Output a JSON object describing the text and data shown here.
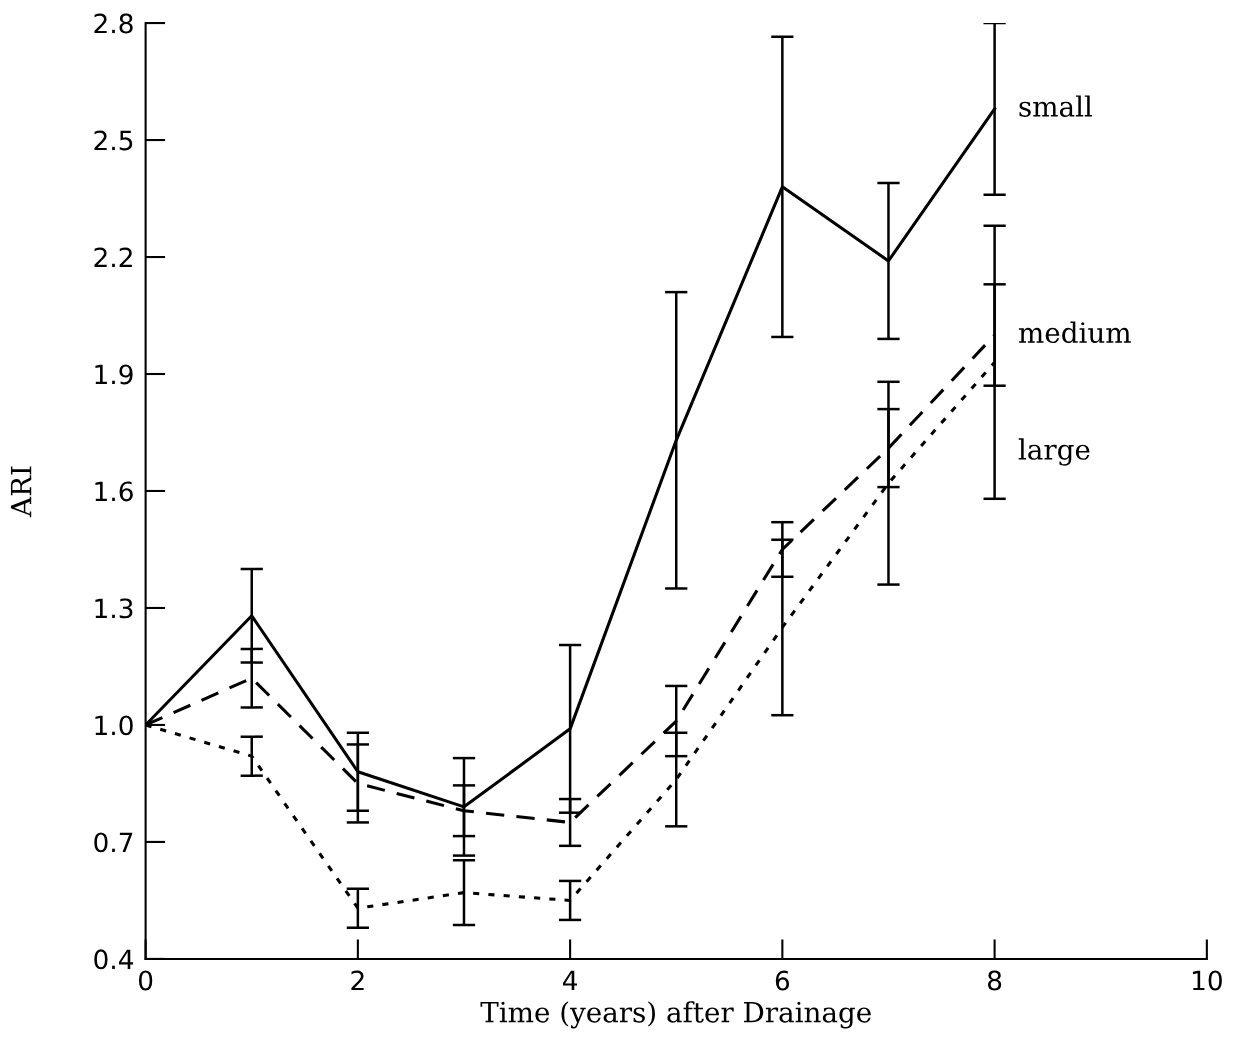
{
  "chart_data": {
    "type": "line",
    "xlabel": "Time (years) after Drainage",
    "ylabel": "ARI",
    "x": [
      0,
      1,
      2,
      3,
      4,
      5,
      6,
      7,
      8
    ],
    "xlim": [
      0,
      10
    ],
    "xticks": [
      0,
      2,
      4,
      6,
      8,
      10
    ],
    "ylim": [
      0.4,
      2.8
    ],
    "yticks": [
      0.4,
      0.7,
      {
        "value": 1,
        "label": "1.0"
      },
      1.3,
      1.6,
      1.9,
      2.2,
      2.5,
      2.8
    ],
    "grid": false,
    "legend": false,
    "marker": "none",
    "series": [
      {
        "name": "small",
        "color": "#000000",
        "line_style": "solid",
        "values": [
          1.0,
          1.28,
          0.88,
          0.79,
          0.99,
          1.73,
          2.38,
          2.19,
          2.58
        ],
        "errors": [
          null,
          0.12,
          0.1,
          0.125,
          0.215,
          0.38,
          0.385,
          0.2,
          0.22
        ]
      },
      {
        "name": "medium",
        "color": "#000000",
        "line_style": "dashed",
        "values": [
          1.0,
          1.12,
          0.85,
          0.78,
          0.75,
          1.01,
          1.45,
          1.71,
          2.0
        ],
        "errors": [
          null,
          0.075,
          0.1,
          0.065,
          0.06,
          0.09,
          0.07,
          0.1,
          0.13
        ]
      },
      {
        "name": "large",
        "color": "#000000",
        "line_style": "dotted",
        "values": [
          1.0,
          0.92,
          0.53,
          0.57,
          0.55,
          0.86,
          1.25,
          1.62,
          1.93
        ],
        "errors": [
          null,
          0.05,
          0.05,
          0.083,
          0.05,
          0.12,
          0.225,
          0.26,
          0.35
        ]
      }
    ]
  }
}
